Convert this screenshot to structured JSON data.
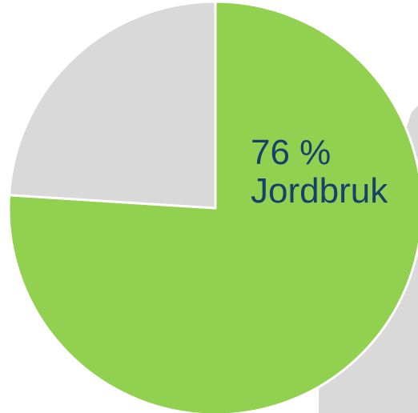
{
  "chart_data": {
    "type": "pie",
    "categories": [
      "Jordbruk",
      null
    ],
    "values": [
      76,
      24
    ],
    "value_labels": [
      "76 %",
      null
    ],
    "colors": [
      "#92d050",
      "#d9d9d9"
    ]
  }
}
